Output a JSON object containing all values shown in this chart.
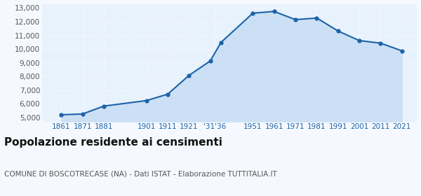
{
  "years": [
    1861,
    1871,
    1881,
    1901,
    1911,
    1921,
    1931,
    1936,
    1951,
    1961,
    1971,
    1981,
    1991,
    2001,
    2011,
    2021
  ],
  "population": [
    5193,
    5252,
    5828,
    6230,
    6700,
    8074,
    9130,
    10480,
    12622,
    12751,
    12150,
    12270,
    11320,
    10620,
    10430,
    9870
  ],
  "line_color": "#1c63a8",
  "fill_color": "#cce0f5",
  "marker_color": "#1c63a8",
  "bg_color": "#f5f9ff",
  "plot_bg": "#e8f2fc",
  "title": "Popolazione residente ai censimenti",
  "subtitle": "COMUNE DI BOSCOTRECASE (NA) - Dati ISTAT - Elaborazione TUTTITALIA.IT",
  "ylim": [
    4700,
    13300
  ],
  "yticks": [
    5000,
    6000,
    7000,
    8000,
    9000,
    10000,
    11000,
    12000,
    13000
  ],
  "grid_color": "#ffffff",
  "title_fontsize": 11,
  "subtitle_fontsize": 7.5
}
